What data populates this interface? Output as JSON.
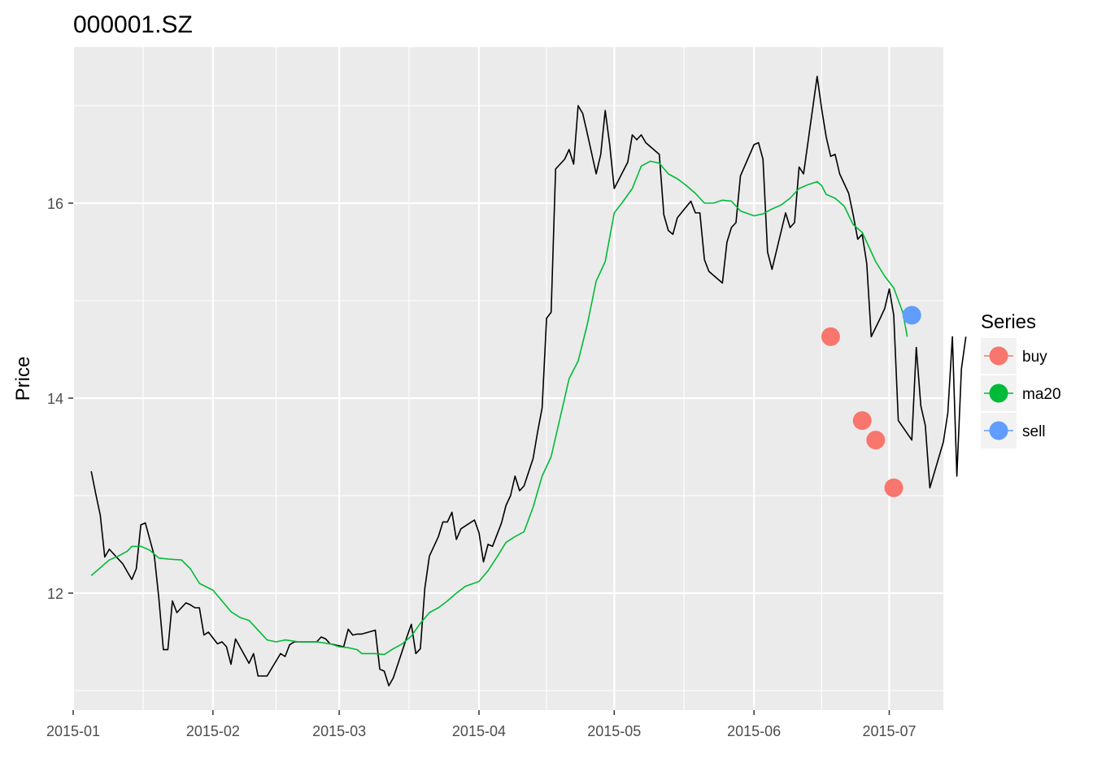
{
  "chart_data": {
    "type": "line",
    "title": "000001.SZ",
    "xlabel": "",
    "ylabel": "Price",
    "x_axis_type": "date",
    "xlim": [
      "2015-01-01",
      "2015-07-13"
    ],
    "ylim": [
      10.8,
      17.6
    ],
    "x_ticks": [
      "2015-01-01",
      "2015-02-01",
      "2015-03-01",
      "2015-04-01",
      "2015-05-01",
      "2015-06-01",
      "2015-07-01"
    ],
    "x_tick_labels": [
      "2015-01",
      "2015-02",
      "2015-03",
      "2015-04",
      "2015-05",
      "2015-06",
      "2015-07"
    ],
    "y_ticks": [
      12,
      14,
      16
    ],
    "y_tick_labels": [
      "12",
      "14",
      "16"
    ],
    "grid": true,
    "background": "#ebebeb",
    "price_series": {
      "color": "#000000",
      "points": [
        [
          "2015-01-05",
          13.25
        ],
        [
          "2015-01-06",
          13.02
        ],
        [
          "2015-01-07",
          12.8
        ],
        [
          "2015-01-08",
          12.37
        ],
        [
          "2015-01-09",
          12.45
        ],
        [
          "2015-01-12",
          12.3
        ],
        [
          "2015-01-13",
          12.22
        ],
        [
          "2015-01-14",
          12.14
        ],
        [
          "2015-01-15",
          12.25
        ],
        [
          "2015-01-16",
          12.7
        ],
        [
          "2015-01-17",
          12.72
        ],
        [
          "2015-01-19",
          12.38
        ],
        [
          "2015-01-20",
          11.95
        ],
        [
          "2015-01-21",
          11.42
        ],
        [
          "2015-01-22",
          11.42
        ],
        [
          "2015-01-23",
          11.92
        ],
        [
          "2015-01-24",
          11.8
        ],
        [
          "2015-01-26",
          11.9
        ],
        [
          "2015-01-27",
          11.88
        ],
        [
          "2015-01-28",
          11.85
        ],
        [
          "2015-01-29",
          11.85
        ],
        [
          "2015-01-30",
          11.57
        ],
        [
          "2015-01-31",
          11.6
        ],
        [
          "2015-02-02",
          11.48
        ],
        [
          "2015-02-03",
          11.5
        ],
        [
          "2015-02-04",
          11.45
        ],
        [
          "2015-02-05",
          11.27
        ],
        [
          "2015-02-06",
          11.53
        ],
        [
          "2015-02-09",
          11.28
        ],
        [
          "2015-02-10",
          11.38
        ],
        [
          "2015-02-11",
          11.15
        ],
        [
          "2015-02-12",
          11.15
        ],
        [
          "2015-02-13",
          11.15
        ],
        [
          "2015-02-16",
          11.38
        ],
        [
          "2015-02-17",
          11.35
        ],
        [
          "2015-02-18",
          11.47
        ],
        [
          "2015-02-19",
          11.5
        ],
        [
          "2015-02-20",
          11.5
        ],
        [
          "2015-02-24",
          11.5
        ],
        [
          "2015-02-25",
          11.55
        ],
        [
          "2015-02-26",
          11.53
        ],
        [
          "2015-02-27",
          11.48
        ],
        [
          "2015-03-02",
          11.45
        ],
        [
          "2015-03-03",
          11.63
        ],
        [
          "2015-03-04",
          11.57
        ],
        [
          "2015-03-05",
          11.58
        ],
        [
          "2015-03-06",
          11.58
        ],
        [
          "2015-03-09",
          11.62
        ],
        [
          "2015-03-10",
          11.22
        ],
        [
          "2015-03-11",
          11.2
        ],
        [
          "2015-03-12",
          11.05
        ],
        [
          "2015-03-13",
          11.13
        ],
        [
          "2015-03-16",
          11.55
        ],
        [
          "2015-03-17",
          11.68
        ],
        [
          "2015-03-18",
          11.38
        ],
        [
          "2015-03-19",
          11.43
        ],
        [
          "2015-03-20",
          12.05
        ],
        [
          "2015-03-21",
          12.38
        ],
        [
          "2015-03-23",
          12.58
        ],
        [
          "2015-03-24",
          12.73
        ],
        [
          "2015-03-25",
          12.73
        ],
        [
          "2015-03-26",
          12.83
        ],
        [
          "2015-03-27",
          12.55
        ],
        [
          "2015-03-28",
          12.66
        ],
        [
          "2015-03-30",
          12.72
        ],
        [
          "2015-03-31",
          12.75
        ],
        [
          "2015-04-01",
          12.62
        ],
        [
          "2015-04-02",
          12.32
        ],
        [
          "2015-04-03",
          12.5
        ],
        [
          "2015-04-04",
          12.48
        ],
        [
          "2015-04-06",
          12.72
        ],
        [
          "2015-04-07",
          12.9
        ],
        [
          "2015-04-08",
          13.0
        ],
        [
          "2015-04-09",
          13.2
        ],
        [
          "2015-04-10",
          13.05
        ],
        [
          "2015-04-11",
          13.1
        ],
        [
          "2015-04-13",
          13.38
        ],
        [
          "2015-04-14",
          13.65
        ],
        [
          "2015-04-15",
          13.9
        ],
        [
          "2015-04-16",
          14.82
        ],
        [
          "2015-04-17",
          14.88
        ],
        [
          "2015-04-18",
          16.35
        ],
        [
          "2015-04-20",
          16.45
        ],
        [
          "2015-04-21",
          16.55
        ],
        [
          "2015-04-22",
          16.4
        ],
        [
          "2015-04-23",
          17.0
        ],
        [
          "2015-04-24",
          16.92
        ],
        [
          "2015-04-25",
          16.72
        ],
        [
          "2015-04-27",
          16.3
        ],
        [
          "2015-04-28",
          16.5
        ],
        [
          "2015-04-29",
          16.95
        ],
        [
          "2015-04-30",
          16.6
        ],
        [
          "2015-05-01",
          16.15
        ],
        [
          "2015-05-04",
          16.42
        ],
        [
          "2015-05-05",
          16.7
        ],
        [
          "2015-05-06",
          16.65
        ],
        [
          "2015-05-07",
          16.7
        ],
        [
          "2015-05-08",
          16.62
        ],
        [
          "2015-05-11",
          16.5
        ],
        [
          "2015-05-12",
          15.88
        ],
        [
          "2015-05-13",
          15.72
        ],
        [
          "2015-05-14",
          15.68
        ],
        [
          "2015-05-15",
          15.85
        ],
        [
          "2015-05-18",
          16.02
        ],
        [
          "2015-05-19",
          15.9
        ],
        [
          "2015-05-20",
          15.9
        ],
        [
          "2015-05-21",
          15.42
        ],
        [
          "2015-05-22",
          15.3
        ],
        [
          "2015-05-25",
          15.18
        ],
        [
          "2015-05-26",
          15.6
        ],
        [
          "2015-05-27",
          15.75
        ],
        [
          "2015-05-28",
          15.8
        ],
        [
          "2015-05-29",
          16.28
        ],
        [
          "2015-06-01",
          16.6
        ],
        [
          "2015-06-02",
          16.62
        ],
        [
          "2015-06-03",
          16.45
        ],
        [
          "2015-06-04",
          15.5
        ],
        [
          "2015-06-05",
          15.32
        ],
        [
          "2015-06-08",
          15.9
        ],
        [
          "2015-06-09",
          15.75
        ],
        [
          "2015-06-10",
          15.8
        ],
        [
          "2015-06-11",
          16.37
        ],
        [
          "2015-06-12",
          16.3
        ],
        [
          "2015-06-15",
          17.3
        ],
        [
          "2015-06-16",
          16.97
        ],
        [
          "2015-06-17",
          16.68
        ],
        [
          "2015-06-18",
          16.48
        ],
        [
          "2015-06-19",
          16.5
        ],
        [
          "2015-06-20",
          16.3
        ],
        [
          "2015-06-22",
          16.1
        ],
        [
          "2015-06-23",
          15.88
        ],
        [
          "2015-06-24",
          15.63
        ],
        [
          "2015-06-25",
          15.68
        ],
        [
          "2015-06-26",
          15.38
        ],
        [
          "2015-06-27",
          14.63
        ],
        [
          "2015-06-29",
          14.82
        ],
        [
          "2015-06-30",
          14.92
        ],
        [
          "2015-07-01",
          15.12
        ],
        [
          "2015-07-02",
          14.85
        ],
        [
          "2015-07-03",
          13.77
        ],
        [
          "2015-07-06",
          13.57
        ],
        [
          "2015-07-07",
          14.52
        ],
        [
          "2015-07-08",
          13.92
        ],
        [
          "2015-07-09",
          13.72
        ],
        [
          "2015-07-10",
          13.08
        ],
        [
          "2015-07-13",
          13.55
        ],
        [
          "2015-07-14",
          13.85
        ],
        [
          "2015-07-15",
          14.63
        ],
        [
          "2015-07-16",
          13.2
        ],
        [
          "2015-07-17",
          14.3
        ],
        [
          "2015-07-18",
          14.63
        ]
      ]
    },
    "series": [
      {
        "name": "buy",
        "color": "#f8766d",
        "points": [
          [
            "2015-06-18",
            14.63
          ],
          [
            "2015-06-25",
            13.77
          ],
          [
            "2015-06-28",
            13.57
          ],
          [
            "2015-07-02",
            13.08
          ]
        ]
      },
      {
        "name": "ma20",
        "color": "#00ba38",
        "points": [
          [
            "2015-01-05",
            12.18
          ],
          [
            "2015-01-07",
            12.26
          ],
          [
            "2015-01-09",
            12.34
          ],
          [
            "2015-01-11",
            12.38
          ],
          [
            "2015-01-13",
            12.43
          ],
          [
            "2015-01-14",
            12.48
          ],
          [
            "2015-01-16",
            12.48
          ],
          [
            "2015-01-18",
            12.44
          ],
          [
            "2015-01-20",
            12.36
          ],
          [
            "2015-01-22",
            12.35
          ],
          [
            "2015-01-25",
            12.34
          ],
          [
            "2015-01-27",
            12.25
          ],
          [
            "2015-01-29",
            12.1
          ],
          [
            "2015-02-01",
            12.03
          ],
          [
            "2015-02-03",
            11.92
          ],
          [
            "2015-02-05",
            11.81
          ],
          [
            "2015-02-07",
            11.75
          ],
          [
            "2015-02-09",
            11.72
          ],
          [
            "2015-02-11",
            11.62
          ],
          [
            "2015-02-13",
            11.52
          ],
          [
            "2015-02-15",
            11.5
          ],
          [
            "2015-02-17",
            11.52
          ],
          [
            "2015-02-20",
            11.5
          ],
          [
            "2015-02-24",
            11.5
          ],
          [
            "2015-02-27",
            11.48
          ],
          [
            "2015-03-01",
            11.45
          ],
          [
            "2015-03-03",
            11.44
          ],
          [
            "2015-03-05",
            11.42
          ],
          [
            "2015-03-06",
            11.38
          ],
          [
            "2015-03-09",
            11.38
          ],
          [
            "2015-03-11",
            11.37
          ],
          [
            "2015-03-13",
            11.43
          ],
          [
            "2015-03-15",
            11.48
          ],
          [
            "2015-03-17",
            11.56
          ],
          [
            "2015-03-19",
            11.69
          ],
          [
            "2015-03-21",
            11.8
          ],
          [
            "2015-03-23",
            11.85
          ],
          [
            "2015-03-25",
            11.92
          ],
          [
            "2015-03-27",
            12.0
          ],
          [
            "2015-03-29",
            12.07
          ],
          [
            "2015-04-01",
            12.12
          ],
          [
            "2015-04-03",
            12.23
          ],
          [
            "2015-04-05",
            12.37
          ],
          [
            "2015-04-07",
            12.52
          ],
          [
            "2015-04-09",
            12.58
          ],
          [
            "2015-04-11",
            12.63
          ],
          [
            "2015-04-13",
            12.88
          ],
          [
            "2015-04-15",
            13.2
          ],
          [
            "2015-04-17",
            13.4
          ],
          [
            "2015-04-19",
            13.8
          ],
          [
            "2015-04-21",
            14.2
          ],
          [
            "2015-04-23",
            14.38
          ],
          [
            "2015-04-25",
            14.75
          ],
          [
            "2015-04-27",
            15.2
          ],
          [
            "2015-04-29",
            15.4
          ],
          [
            "2015-05-01",
            15.9
          ],
          [
            "2015-05-03",
            16.02
          ],
          [
            "2015-05-05",
            16.15
          ],
          [
            "2015-05-07",
            16.38
          ],
          [
            "2015-05-09",
            16.43
          ],
          [
            "2015-05-11",
            16.41
          ],
          [
            "2015-05-13",
            16.3
          ],
          [
            "2015-05-15",
            16.25
          ],
          [
            "2015-05-17",
            16.18
          ],
          [
            "2015-05-19",
            16.1
          ],
          [
            "2015-05-21",
            16.0
          ],
          [
            "2015-05-23",
            16.0
          ],
          [
            "2015-05-25",
            16.03
          ],
          [
            "2015-05-27",
            16.02
          ],
          [
            "2015-05-29",
            15.92
          ],
          [
            "2015-06-01",
            15.87
          ],
          [
            "2015-06-03",
            15.89
          ],
          [
            "2015-06-05",
            15.94
          ],
          [
            "2015-06-07",
            15.98
          ],
          [
            "2015-06-09",
            16.05
          ],
          [
            "2015-06-11",
            16.15
          ],
          [
            "2015-06-13",
            16.19
          ],
          [
            "2015-06-15",
            16.22
          ],
          [
            "2015-06-16",
            16.18
          ],
          [
            "2015-06-17",
            16.09
          ],
          [
            "2015-06-19",
            16.05
          ],
          [
            "2015-06-21",
            15.97
          ],
          [
            "2015-06-23",
            15.78
          ],
          [
            "2015-06-25",
            15.7
          ],
          [
            "2015-06-26",
            15.6
          ],
          [
            "2015-06-28",
            15.4
          ],
          [
            "2015-06-30",
            15.25
          ],
          [
            "2015-07-02",
            15.13
          ],
          [
            "2015-07-04",
            14.88
          ],
          [
            "2015-07-05",
            14.63
          ]
        ]
      },
      {
        "name": "sell",
        "color": "#619cff",
        "points": [
          [
            "2015-07-06",
            14.85
          ]
        ]
      }
    ],
    "legend": {
      "title": "Series",
      "position": "right",
      "entries": [
        {
          "label": "buy",
          "color": "#f8766d"
        },
        {
          "label": "ma20",
          "color": "#00ba38"
        },
        {
          "label": "sell",
          "color": "#619cff"
        }
      ]
    }
  }
}
